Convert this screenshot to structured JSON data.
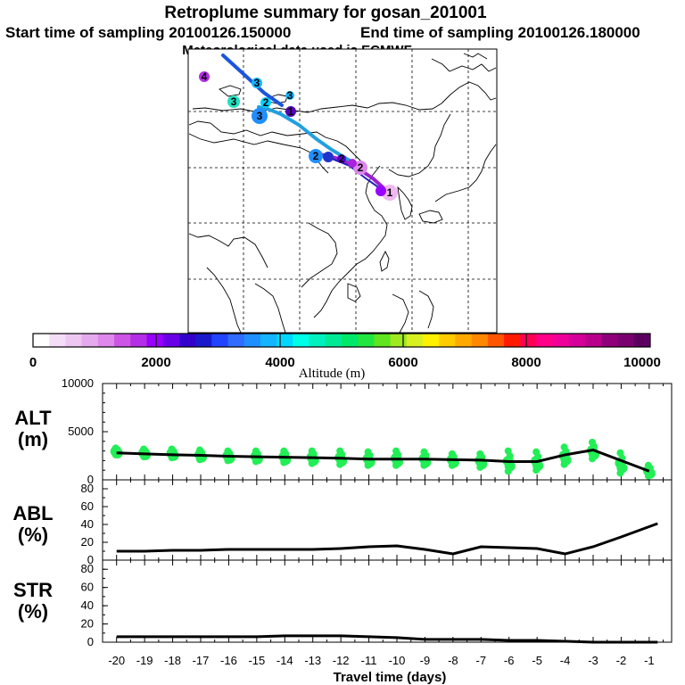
{
  "header": {
    "title": "Retroplume summary for gosan_201001",
    "start_label": "Start time of sampling 20100126.150000",
    "end_label": "End time of sampling 20100126.180000",
    "met_label": "Meteorological data used is ECMWF"
  },
  "colorbar": {
    "ticks": [
      "0",
      "2000",
      "4000",
      "6000",
      "8000",
      "10000"
    ],
    "label": "Altitude (m)",
    "colors": [
      "#ffffff",
      "#f4ddf6",
      "#eec6f2",
      "#e5aaee",
      "#dd88ea",
      "#cc55e6",
      "#b32ee6",
      "#9900ff",
      "#6a00e8",
      "#3300cc",
      "#1a1acc",
      "#2244ff",
      "#2f6cff",
      "#1f8fff",
      "#14b4ff",
      "#00d8ff",
      "#00ffe8",
      "#00f0c0",
      "#00ea95",
      "#00e86a",
      "#22e640",
      "#60e520",
      "#a0e820",
      "#d8f020",
      "#fff000",
      "#ffcc00",
      "#ffaa00",
      "#ff8800",
      "#ff5500",
      "#ff1a00",
      "#ff0055",
      "#ff0088",
      "#ee0099",
      "#d40099",
      "#b8008c",
      "#90007a",
      "#7a0070",
      "#5c0060"
    ]
  },
  "map": {
    "trajectory_colors": [
      "#aa00cc",
      "#2222bb",
      "#22a0e0",
      "#1b55dd"
    ],
    "cluster_labels": [
      "1",
      "2",
      "3",
      "4"
    ]
  },
  "panels": {
    "alt": {
      "label": "ALT",
      "unit": "(m)"
    },
    "abl": {
      "label": "ABL",
      "unit": "(%)"
    },
    "str": {
      "label": "STR",
      "unit": "(%)"
    },
    "xlabel": "Travel time (days)"
  },
  "chart_data": [
    {
      "type": "line",
      "title": "ALT (m)",
      "x": [
        -20,
        -19,
        -18,
        -17,
        -16,
        -15,
        -14,
        -13,
        -12,
        -11,
        -10,
        -9,
        -8,
        -7,
        -6,
        -5,
        -4,
        -3,
        -2,
        -1
      ],
      "series": [
        {
          "name": "mean altitude",
          "values": [
            2800,
            2700,
            2600,
            2550,
            2450,
            2400,
            2350,
            2300,
            2250,
            2150,
            2150,
            2150,
            2100,
            2050,
            1900,
            1900,
            2600,
            3100,
            2000,
            900
          ]
        },
        {
          "name": "plume spread (upper)",
          "values": [
            3300,
            3200,
            3200,
            3100,
            3000,
            3000,
            3000,
            3000,
            3000,
            2900,
            3000,
            2900,
            2700,
            2700,
            3000,
            2900,
            3400,
            3900,
            2800,
            1500
          ]
        },
        {
          "name": "plume spread (lower)",
          "values": [
            2600,
            2400,
            2300,
            2100,
            2000,
            1900,
            1800,
            1700,
            1600,
            1500,
            1500,
            1500,
            1500,
            1300,
            900,
            1000,
            1600,
            2200,
            700,
            400
          ]
        }
      ],
      "ylim": [
        0,
        10000
      ],
      "yticks": [
        "0",
        "5000",
        "10000"
      ],
      "xlim": [
        -20.5,
        -0.2
      ]
    },
    {
      "type": "line",
      "title": "ABL (%)",
      "x": [
        -20,
        -19,
        -18,
        -17,
        -16,
        -15,
        -14,
        -13,
        -12,
        -11,
        -10,
        -9,
        -8,
        -7,
        -6,
        -5,
        -4,
        -3,
        -2,
        -0.7
      ],
      "values": [
        10,
        10,
        11,
        11,
        12,
        12,
        12,
        12,
        13,
        15,
        16,
        12,
        7,
        15,
        14,
        13,
        7,
        15,
        26,
        41
      ],
      "ylim": [
        0,
        90
      ],
      "yticks": [
        "0",
        "20",
        "40",
        "60",
        "80"
      ],
      "xlim": [
        -20.5,
        -0.2
      ]
    },
    {
      "type": "line",
      "title": "STR (%)",
      "x": [
        -20,
        -19,
        -18,
        -17,
        -16,
        -15,
        -14,
        -13,
        -12,
        -11,
        -10,
        -9,
        -8,
        -7,
        -6,
        -5,
        -4,
        -3,
        -2,
        -0.7
      ],
      "values": [
        6,
        6,
        6,
        6,
        6,
        6,
        7,
        7,
        7,
        6,
        5,
        3,
        3,
        3,
        2,
        2,
        1,
        0,
        0,
        0
      ],
      "ylim": [
        0,
        90
      ],
      "yticks": [
        "0",
        "20",
        "40",
        "60",
        "80"
      ],
      "xlim": [
        -20.5,
        -0.2
      ],
      "xticks": [
        "-20",
        "-19",
        "-18",
        "-17",
        "-16",
        "-15",
        "-14",
        "-13",
        "-12",
        "-11",
        "-10",
        "-9",
        "-8",
        "-7",
        "-6",
        "-5",
        "-4",
        "-3",
        "-2",
        "-1"
      ],
      "xlabel": "Travel time (days)"
    }
  ]
}
